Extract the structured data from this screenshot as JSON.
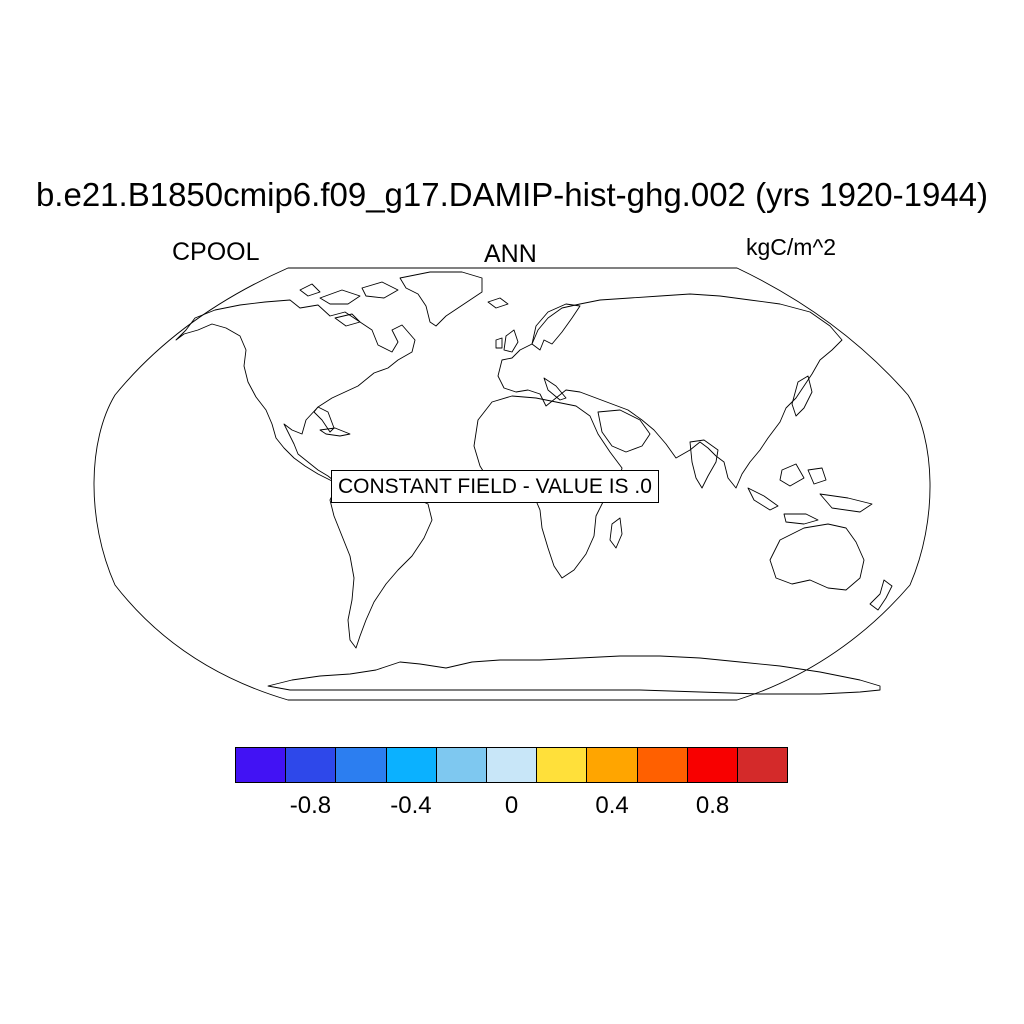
{
  "plot": {
    "title": "b.e21.B1850cmip6.f09_g17.DAMIP-hist-ghg.002 (yrs 1920-1944)",
    "left_label": "CPOOL",
    "center_label": "ANN",
    "right_label": "kgC/m^2",
    "notice": "CONSTANT FIELD - VALUE IS .0"
  },
  "map": {
    "projection": "robinson",
    "land_fill": "none",
    "coastline_color": "#000000"
  },
  "colorbar": {
    "levels": [
      -1.0,
      -0.8,
      -0.6,
      -0.4,
      -0.2,
      0,
      0.2,
      0.4,
      0.6,
      0.8,
      1.0
    ],
    "colors": [
      "#4212f4",
      "#2e48ea",
      "#2c7ef0",
      "#0bb1ff",
      "#7ec8f0",
      "#c8e6f8",
      "#ffe03a",
      "#ffa500",
      "#ff6000",
      "#f80000",
      "#d42a2a"
    ],
    "labels": [
      {
        "text": "-0.8",
        "value": -0.8
      },
      {
        "text": "-0.4",
        "value": -0.4
      },
      {
        "text": "0",
        "value": 0
      },
      {
        "text": "0.4",
        "value": 0.4
      },
      {
        "text": "0.8",
        "value": 0.8
      }
    ]
  }
}
